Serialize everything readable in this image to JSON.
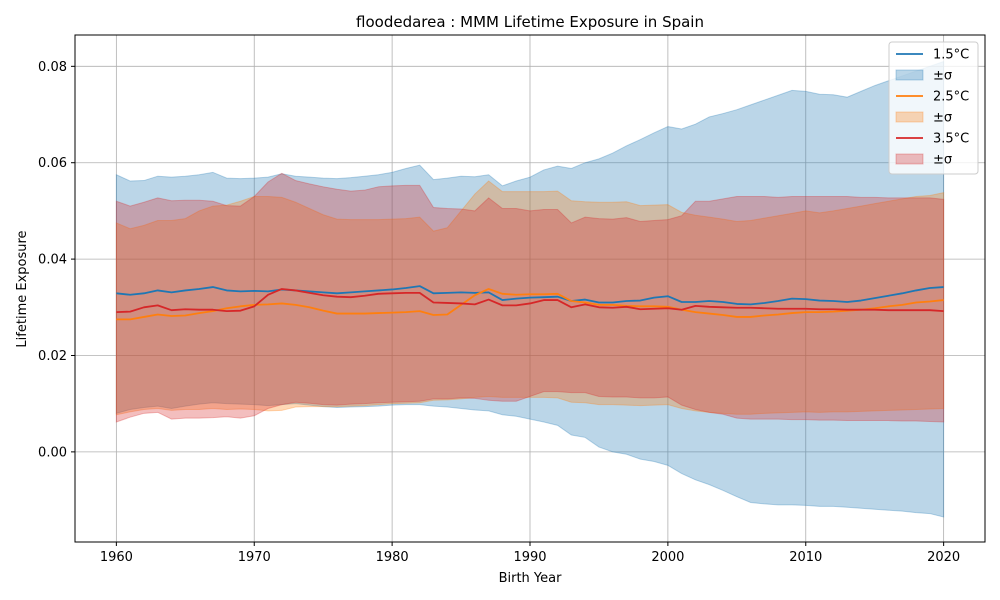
{
  "chart_data": {
    "type": "line",
    "title": "floodedarea : MMM Lifetime Exposure in Spain",
    "xlabel": "Birth Year",
    "ylabel": "Lifetime Exposure",
    "xlim": [
      1957,
      2023
    ],
    "ylim": [
      -0.0187,
      0.0865
    ],
    "xticks": [
      1960,
      1970,
      1980,
      1990,
      2000,
      2010,
      2020
    ],
    "yticks": [
      0.0,
      0.02,
      0.04,
      0.06,
      0.08
    ],
    "ytick_labels": [
      "0.00",
      "0.02",
      "0.04",
      "0.06",
      "0.08"
    ],
    "grid": true,
    "legend_position": "upper-right",
    "x": [
      1960,
      1961,
      1962,
      1963,
      1964,
      1965,
      1966,
      1967,
      1968,
      1969,
      1970,
      1971,
      1972,
      1973,
      1974,
      1975,
      1976,
      1977,
      1978,
      1979,
      1980,
      1981,
      1982,
      1983,
      1984,
      1985,
      1986,
      1987,
      1988,
      1989,
      1990,
      1991,
      1992,
      1993,
      1994,
      1995,
      1996,
      1997,
      1998,
      1999,
      2000,
      2001,
      2002,
      2003,
      2004,
      2005,
      2006,
      2007,
      2008,
      2009,
      2010,
      2011,
      2012,
      2013,
      2014,
      2015,
      2016,
      2017,
      2018,
      2019,
      2020
    ],
    "series": [
      {
        "name": "1.5°C",
        "band_label": "±σ",
        "color": "#1f77b4",
        "mean": [
          0.0329,
          0.0326,
          0.0329,
          0.0335,
          0.0331,
          0.0335,
          0.0338,
          0.0342,
          0.0335,
          0.0333,
          0.0334,
          0.0333,
          0.0337,
          0.0335,
          0.0333,
          0.0331,
          0.0329,
          0.0331,
          0.0333,
          0.0335,
          0.0337,
          0.034,
          0.0344,
          0.0329,
          0.033,
          0.0331,
          0.033,
          0.0331,
          0.0315,
          0.0318,
          0.032,
          0.0321,
          0.0322,
          0.0313,
          0.0316,
          0.031,
          0.031,
          0.0313,
          0.0314,
          0.032,
          0.0323,
          0.0311,
          0.0311,
          0.0313,
          0.0311,
          0.0307,
          0.0306,
          0.0309,
          0.0313,
          0.0318,
          0.0317,
          0.0314,
          0.0313,
          0.0311,
          0.0314,
          0.0319,
          0.0324,
          0.0329,
          0.0335,
          0.034,
          0.0342
        ],
        "upper": [
          0.0575,
          0.0562,
          0.0563,
          0.0572,
          0.057,
          0.0572,
          0.0575,
          0.058,
          0.0568,
          0.0567,
          0.0568,
          0.057,
          0.0577,
          0.0572,
          0.057,
          0.0568,
          0.0567,
          0.0569,
          0.0572,
          0.0575,
          0.058,
          0.0588,
          0.0595,
          0.0565,
          0.0568,
          0.0572,
          0.0571,
          0.0575,
          0.0552,
          0.0562,
          0.057,
          0.0585,
          0.0593,
          0.0588,
          0.06,
          0.0608,
          0.062,
          0.0635,
          0.0648,
          0.0662,
          0.0675,
          0.067,
          0.068,
          0.0695,
          0.0702,
          0.071,
          0.072,
          0.073,
          0.074,
          0.075,
          0.0748,
          0.0742,
          0.0741,
          0.0736,
          0.0748,
          0.076,
          0.077,
          0.078,
          0.079,
          0.08,
          0.081
        ],
        "lower": [
          0.008,
          0.0088,
          0.0092,
          0.0095,
          0.009,
          0.0095,
          0.0099,
          0.0102,
          0.01,
          0.0099,
          0.0098,
          0.0096,
          0.0098,
          0.01,
          0.0097,
          0.0094,
          0.0092,
          0.0093,
          0.0094,
          0.0095,
          0.0097,
          0.0098,
          0.0098,
          0.0095,
          0.0093,
          0.009,
          0.0087,
          0.0085,
          0.0077,
          0.0074,
          0.0068,
          0.0062,
          0.0055,
          0.0035,
          0.003,
          0.001,
          0.0,
          -0.0005,
          -0.0015,
          -0.002,
          -0.0028,
          -0.0045,
          -0.0058,
          -0.0068,
          -0.008,
          -0.0093,
          -0.0105,
          -0.0108,
          -0.011,
          -0.011,
          -0.0111,
          -0.0113,
          -0.0113,
          -0.0115,
          -0.0117,
          -0.0119,
          -0.0121,
          -0.0123,
          -0.0126,
          -0.0128,
          -0.0135
        ]
      },
      {
        "name": "2.5°C",
        "band_label": "±σ",
        "color": "#ff7f0e",
        "mean": [
          0.0275,
          0.0275,
          0.028,
          0.0285,
          0.0282,
          0.0283,
          0.0288,
          0.0292,
          0.0298,
          0.0302,
          0.0305,
          0.0306,
          0.0308,
          0.0305,
          0.03,
          0.0293,
          0.0287,
          0.0287,
          0.0287,
          0.0288,
          0.0289,
          0.029,
          0.0292,
          0.0284,
          0.0285,
          0.0305,
          0.0325,
          0.0338,
          0.0328,
          0.0326,
          0.0327,
          0.0327,
          0.0328,
          0.0313,
          0.031,
          0.0305,
          0.0305,
          0.0303,
          0.0302,
          0.0302,
          0.0301,
          0.0295,
          0.029,
          0.0287,
          0.0284,
          0.028,
          0.028,
          0.0283,
          0.0285,
          0.0288,
          0.029,
          0.029,
          0.0291,
          0.0293,
          0.0295,
          0.0298,
          0.0302,
          0.0305,
          0.031,
          0.0312,
          0.0315
        ],
        "upper": [
          0.0475,
          0.0463,
          0.047,
          0.048,
          0.048,
          0.0484,
          0.05,
          0.051,
          0.0512,
          0.052,
          0.053,
          0.053,
          0.0528,
          0.0518,
          0.0505,
          0.0492,
          0.0483,
          0.0482,
          0.0482,
          0.0482,
          0.0483,
          0.0484,
          0.0487,
          0.0458,
          0.0465,
          0.05,
          0.0535,
          0.0562,
          0.054,
          0.054,
          0.054,
          0.054,
          0.0541,
          0.0521,
          0.0519,
          0.0518,
          0.0518,
          0.0519,
          0.0511,
          0.0512,
          0.0513,
          0.0497,
          0.0491,
          0.0487,
          0.0483,
          0.0478,
          0.048,
          0.0485,
          0.049,
          0.0495,
          0.05,
          0.0496,
          0.05,
          0.0505,
          0.051,
          0.0515,
          0.052,
          0.0525,
          0.053,
          0.0532,
          0.0538
        ],
        "lower": [
          0.0077,
          0.0083,
          0.0088,
          0.009,
          0.0086,
          0.0088,
          0.0088,
          0.009,
          0.0088,
          0.0089,
          0.0088,
          0.0085,
          0.0086,
          0.0093,
          0.0094,
          0.0094,
          0.0094,
          0.0095,
          0.0096,
          0.0098,
          0.01,
          0.0101,
          0.0102,
          0.0107,
          0.0108,
          0.011,
          0.0113,
          0.0115,
          0.0113,
          0.0113,
          0.0113,
          0.0113,
          0.0112,
          0.0103,
          0.0102,
          0.0098,
          0.0098,
          0.0097,
          0.0096,
          0.0097,
          0.0098,
          0.009,
          0.0085,
          0.0082,
          0.008,
          0.0078,
          0.0078,
          0.008,
          0.0081,
          0.0082,
          0.0083,
          0.0082,
          0.0083,
          0.0083,
          0.0084,
          0.0085,
          0.0086,
          0.0087,
          0.0088,
          0.0089,
          0.009
        ]
      },
      {
        "name": "3.5°C",
        "band_label": "±σ",
        "color": "#d62728",
        "mean": [
          0.029,
          0.0291,
          0.03,
          0.0304,
          0.0294,
          0.0296,
          0.0295,
          0.0295,
          0.0292,
          0.0293,
          0.0302,
          0.0326,
          0.0338,
          0.0335,
          0.033,
          0.0325,
          0.0322,
          0.0321,
          0.0324,
          0.0328,
          0.0329,
          0.033,
          0.033,
          0.031,
          0.0309,
          0.0308,
          0.0306,
          0.0316,
          0.0304,
          0.0304,
          0.0308,
          0.0315,
          0.0315,
          0.03,
          0.0306,
          0.03,
          0.0299,
          0.0301,
          0.0296,
          0.0297,
          0.0298,
          0.0295,
          0.0303,
          0.0301,
          0.03,
          0.0299,
          0.0299,
          0.0298,
          0.0297,
          0.0297,
          0.0297,
          0.0296,
          0.0296,
          0.0295,
          0.0295,
          0.0295,
          0.0294,
          0.0294,
          0.0294,
          0.0294,
          0.0292
        ],
        "upper": [
          0.052,
          0.051,
          0.0518,
          0.0527,
          0.0521,
          0.0522,
          0.0522,
          0.052,
          0.0511,
          0.051,
          0.053,
          0.056,
          0.0578,
          0.0563,
          0.0556,
          0.055,
          0.0545,
          0.0541,
          0.0543,
          0.055,
          0.0552,
          0.0553,
          0.0553,
          0.0507,
          0.0505,
          0.0504,
          0.05,
          0.0527,
          0.0505,
          0.0505,
          0.05,
          0.0503,
          0.0503,
          0.0475,
          0.0487,
          0.0484,
          0.0483,
          0.0486,
          0.0478,
          0.048,
          0.0482,
          0.049,
          0.052,
          0.052,
          0.0525,
          0.053,
          0.053,
          0.053,
          0.0528,
          0.053,
          0.053,
          0.053,
          0.053,
          0.053,
          0.0528,
          0.0528,
          0.0527,
          0.0527,
          0.0527,
          0.0527,
          0.0524
        ],
        "lower": [
          0.0062,
          0.0072,
          0.008,
          0.0082,
          0.0068,
          0.007,
          0.007,
          0.0071,
          0.0073,
          0.007,
          0.0075,
          0.009,
          0.0098,
          0.0103,
          0.0101,
          0.0098,
          0.0097,
          0.0099,
          0.01,
          0.0102,
          0.0103,
          0.0104,
          0.0105,
          0.011,
          0.011,
          0.0112,
          0.0111,
          0.0107,
          0.0105,
          0.0105,
          0.0115,
          0.0125,
          0.0125,
          0.0123,
          0.0123,
          0.0115,
          0.0114,
          0.0114,
          0.0112,
          0.0112,
          0.0114,
          0.0097,
          0.0088,
          0.0082,
          0.0078,
          0.007,
          0.0068,
          0.0068,
          0.0068,
          0.0067,
          0.0067,
          0.0066,
          0.0066,
          0.0065,
          0.0065,
          0.0065,
          0.0065,
          0.0064,
          0.0064,
          0.0063,
          0.0062
        ]
      }
    ]
  }
}
